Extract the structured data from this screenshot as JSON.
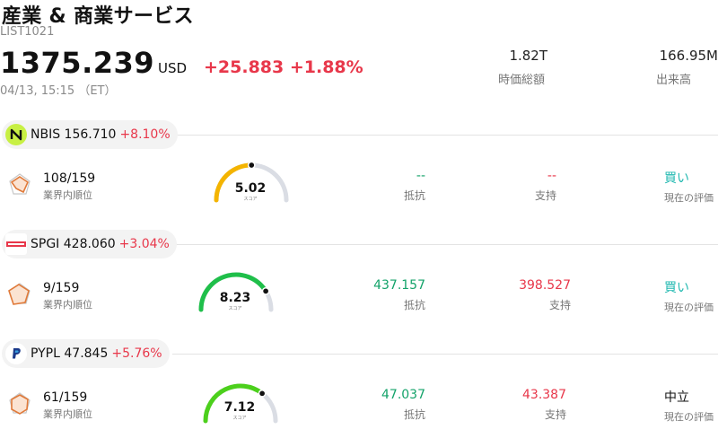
{
  "header": {
    "title": "産業 & 商業サービス",
    "code": "LIST1021",
    "price": "1375.239",
    "currency": "USD",
    "change": "+25.883 +1.88%",
    "time": "04/13, 15:15 （ET）",
    "market_cap_value": "1.82T",
    "market_cap_label": "時価総額",
    "volume_value": "166.95M",
    "volume_label": "出来高"
  },
  "rows": [
    {
      "ticker": "NBIS 156.710",
      "pct": "+8.10%",
      "logo_icon": "nbis-logo-icon",
      "logo_color": "#c8f044",
      "rank": "108/159",
      "rank_label": "業界内順位",
      "score": "5.02",
      "score_fraction": 0.502,
      "score_color": "#f4b400",
      "score_label": "スコア",
      "resistance": "--",
      "resistance_label": "抵抗",
      "support": "--",
      "support_label": "支持",
      "evaluation": "買い",
      "evaluation_label": "現在の評価",
      "eval_color": "#20b8b0"
    },
    {
      "ticker": "SPGI 428.060",
      "pct": "+3.04%",
      "logo_icon": "spgi-logo-icon",
      "logo_color": "#e8374a",
      "rank": "9/159",
      "rank_label": "業界内順位",
      "score": "8.23",
      "score_fraction": 0.823,
      "score_color": "#1fbf4a",
      "score_label": "スコア",
      "resistance": "437.157",
      "resistance_label": "抵抗",
      "support": "398.527",
      "support_label": "支持",
      "evaluation": "買い",
      "evaluation_label": "現在の評価",
      "eval_color": "#20b8b0"
    },
    {
      "ticker": "PYPL 47.845",
      "pct": "+5.76%",
      "logo_icon": "paypal-logo-icon",
      "logo_color": "#1a3a8a",
      "rank": "61/159",
      "rank_label": "業界内順位",
      "score": "7.12",
      "score_fraction": 0.712,
      "score_color": "#4cd01c",
      "score_label": "スコア",
      "resistance": "47.037",
      "resistance_label": "抵抗",
      "support": "43.387",
      "support_label": "支持",
      "evaluation": "中立",
      "evaluation_label": "現在の評価",
      "eval_color": "#111111"
    }
  ]
}
